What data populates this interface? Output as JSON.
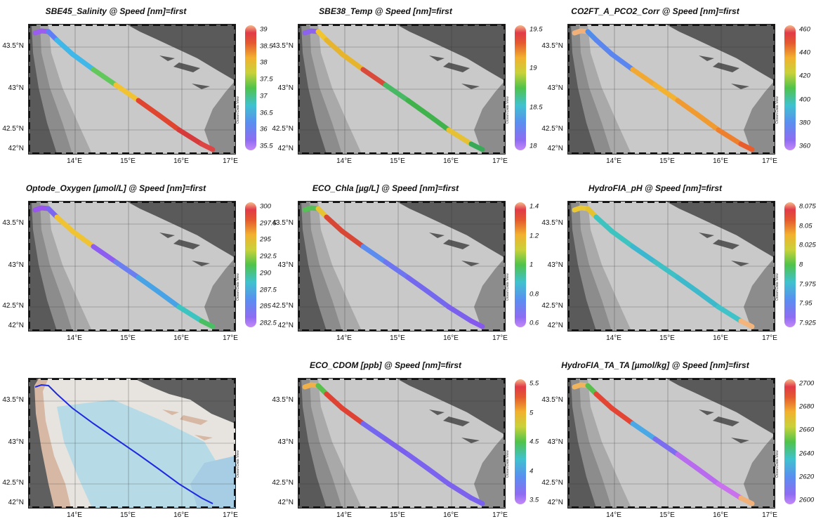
{
  "panels": [
    {
      "id": "p0",
      "row": 0,
      "col": 0,
      "title": "SBE45_Salinity @ Speed [nm]=first",
      "palette": "rainbow",
      "cbar_ticks": [
        "39",
        "38.5",
        "38",
        "37.5",
        "37",
        "36.5",
        "36",
        "35.5"
      ],
      "track_colors": [
        "#9b5cf0",
        "#5f7ef5",
        "#3fb7e8",
        "#62c85c",
        "#f1c232",
        "#e0452f",
        "#d63a3a",
        "#dd4444"
      ]
    },
    {
      "id": "p1",
      "row": 0,
      "col": 1,
      "title": "SBE38_Temp @ Speed [nm]=first",
      "palette": "rainbow",
      "cbar_ticks": [
        "19.5",
        "19",
        "18.5",
        "18"
      ],
      "track_colors": [
        "#8d62ee",
        "#f0c530",
        "#e7b52d",
        "#d94a3a",
        "#47b863",
        "#3fb24c",
        "#e6c133",
        "#3aa957"
      ]
    },
    {
      "id": "p2",
      "row": 0,
      "col": 2,
      "title": "CO2FT_A_PCO2_Corr @ Speed [nm]=first",
      "palette": "rainbow",
      "cbar_ticks": [
        "460",
        "440",
        "420",
        "400",
        "380",
        "360"
      ],
      "track_colors": [
        "#f1b178",
        "#4f8de8",
        "#5b86ef",
        "#f2a933",
        "#f3b230",
        "#f19a30",
        "#ee7f2d",
        "#e85d2b"
      ]
    },
    {
      "id": "p3",
      "row": 1,
      "col": 0,
      "title": "Optode_Oxygen [µmol/L] @ Speed [nm]=first",
      "palette": "rainbow",
      "cbar_ticks": [
        "300",
        "297.5",
        "295",
        "292.5",
        "290",
        "287.5",
        "285",
        "282.5"
      ],
      "track_colors": [
        "#9a55ee",
        "#7b66ef",
        "#f0c332",
        "#8d5cf0",
        "#6b7ff1",
        "#47a2e6",
        "#3cc5c0",
        "#49be62"
      ]
    },
    {
      "id": "p4",
      "row": 1,
      "col": 1,
      "title": "ECO_Chla [µg/L] @ Speed [nm]=first",
      "palette": "rainbow",
      "cbar_ticks": [
        "1.4",
        "1.2",
        "1",
        "0.8",
        "0.6"
      ],
      "track_colors": [
        "#56bf55",
        "#e7c433",
        "#d84735",
        "#5c8cf0",
        "#6d75f1",
        "#7468ef",
        "#7b60ee",
        "#8559ee"
      ]
    },
    {
      "id": "p5",
      "row": 1,
      "col": 2,
      "title": "HydroFIA_pH @ Speed [nm]=first",
      "palette": "rainbow",
      "cbar_ticks": [
        "8.075",
        "8.05",
        "8.025",
        "8",
        "7.975",
        "7.95",
        "7.925"
      ],
      "track_colors": [
        "#e9c833",
        "#e4c230",
        "#3dc4c0",
        "#3cb7d0",
        "#3ec0c5",
        "#3db9cc",
        "#40c3c8",
        "#f3b57b"
      ]
    },
    {
      "id": "p6",
      "row": 2,
      "col": 0,
      "title": "",
      "palette": "bathymetry",
      "cbar_ticks": [],
      "track_colors": [
        "#1f2ae0"
      ]
    },
    {
      "id": "p7",
      "row": 2,
      "col": 1,
      "title": "ECO_CDOM [ppb] @ Speed [nm]=first",
      "palette": "rainbow",
      "cbar_ticks": [
        "5.5",
        "5",
        "4.5",
        "4",
        "3.5"
      ],
      "track_colors": [
        "#f0b04a",
        "#5bbf4e",
        "#df4233",
        "#7466ef",
        "#7a5fee",
        "#7c63ef",
        "#7d62ee",
        "#7a60ef"
      ]
    },
    {
      "id": "p8",
      "row": 2,
      "col": 2,
      "title": "HydroFIA_TA_TA [µmol/kg] @ Speed [nm]=first",
      "palette": "rainbow",
      "cbar_ticks": [
        "2700",
        "2680",
        "2660",
        "2640",
        "2620",
        "2600"
      ],
      "track_colors": [
        "#f0b55c",
        "#5bbd4d",
        "#e34433",
        "#4aa8e6",
        "#7c6cf0",
        "#b86bee",
        "#ca72ee",
        "#f3b17a"
      ]
    }
  ],
  "axes": {
    "lat_labels": [
      "43.5°N",
      "43°N",
      "42.5°N",
      "42°N"
    ],
    "lon_labels": [
      "14°E",
      "15°E",
      "16°E",
      "17°E"
    ]
  },
  "odv_label": "Ocean Data View",
  "colors": {
    "land": "#5a5a5a",
    "shelf": "#8c8c8c",
    "shelf2": "#a9a9a9",
    "sea": "#c9c9c9",
    "bathy_land": "#5f5f5f",
    "bathy_coast": "#d7b8a4",
    "bathy_shelf": "#e7e4df",
    "bathy_sea": "#b7dbe6",
    "bathy_deep": "#a6cde3"
  }
}
